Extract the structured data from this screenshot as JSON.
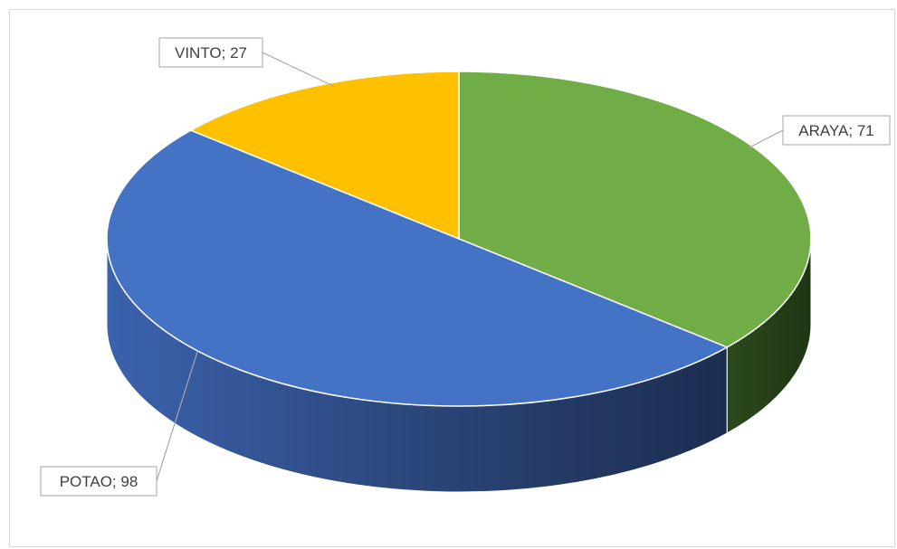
{
  "chart_data": {
    "type": "pie",
    "style": "3d",
    "categories": [
      "ARAYA",
      "POTAO",
      "VINTO"
    ],
    "values": [
      71,
      98,
      27
    ],
    "labels": [
      "ARAYA; 71",
      "POTAO; 98",
      "VINTO; 27"
    ],
    "colors": [
      "#70ad47",
      "#4472c4",
      "#ffc000"
    ],
    "side_colors": [
      "#375623",
      "#2a4a85",
      "#a67c00"
    ],
    "legend": "none"
  }
}
